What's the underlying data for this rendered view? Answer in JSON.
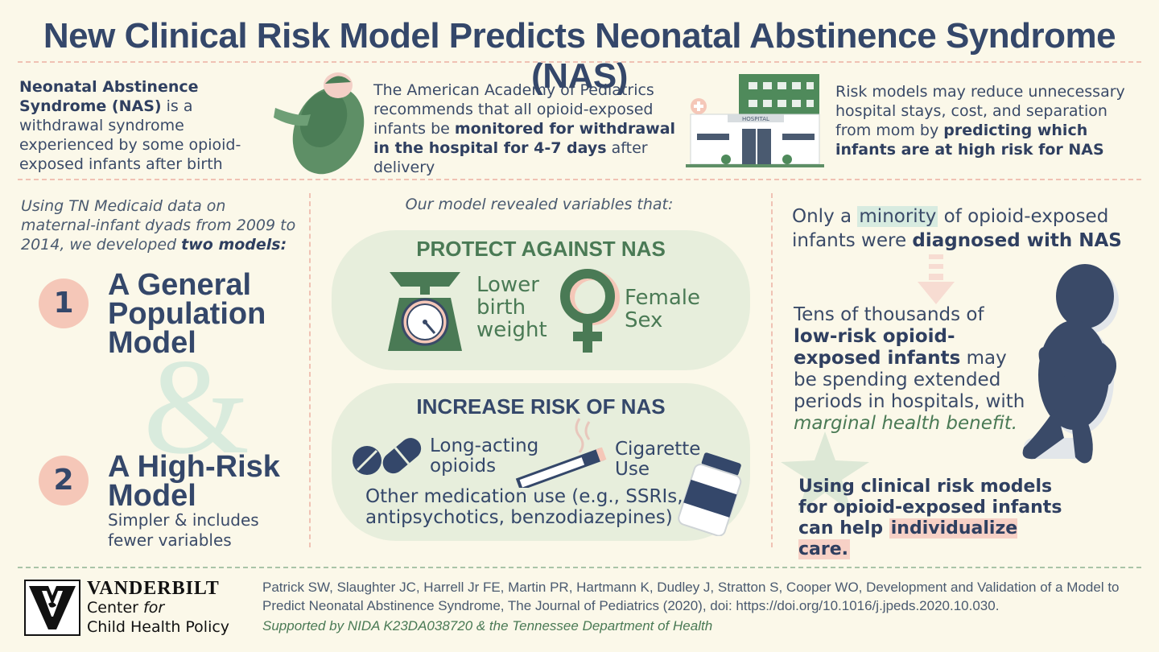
{
  "title": "New Clinical Risk Model Predicts Neonatal Abstinence Syndrome (NAS)",
  "intro": {
    "nas_bold": "Neonatal Abstinence Syndrome (NAS)",
    "nas_rest": " is a withdrawal syndrome experienced by some opioid-exposed infants after birth",
    "aap_a": "The American Academy of Pediatrics recommends that all opioid-exposed infants be ",
    "aap_bold": "monitored for withdrawal in the hospital for 4-7 days",
    "aap_b": " after delivery",
    "hospital_sign": "HOSPITAL",
    "risk_a": "Risk models may reduce unnecessary hospital stays, cost, and separation from mom by ",
    "risk_bold": "predicting which infants are at high risk for NAS"
  },
  "left": {
    "intro_a": "Using TN Medicaid data on maternal-infant dyads from 2009 to 2014, we developed ",
    "intro_bold": "two models:",
    "model1_num": "1",
    "model1_title": "A General Population Model",
    "amp": "&",
    "model2_num": "2",
    "model2_title": "A High-Risk Model",
    "model2_sub": "Simpler & includes fewer variables"
  },
  "middle": {
    "intro": "Our model revealed variables that:",
    "protect_title": "PROTECT AGAINST NAS",
    "protect_1": "Lower birth weight",
    "protect_2": "Female Sex",
    "increase_title": "INCREASE RISK OF NAS",
    "increase_1": "Long-acting opioids",
    "increase_2": "Cigarette Use",
    "increase_3": "Other medication use (e.g., SSRIs, antipsychotics, benzodiazepines)"
  },
  "right": {
    "p1_a": "Only a ",
    "p1_hl": "minority",
    "p1_b": " of opioid-exposed infants were ",
    "p1_bold": "diagnosed with NAS",
    "p2_a": "Tens of thousands of ",
    "p2_bold": "low-risk opioid-exposed infants",
    "p2_b": " may be spending extended periods in hospitals, with ",
    "p2_it": "marginal health benefit.",
    "p3_a": "Using clinical risk models for opioid-exposed infants can help ",
    "p3_hl": "individualize care."
  },
  "footer": {
    "logo_name": "VANDERBILT",
    "logo_line2a": "Center ",
    "logo_line2b": "for",
    "logo_line3": "Child Health Policy",
    "citation": "Patrick SW, Slaughter JC, Harrell Jr FE, Martin PR, Hartmann K, Dudley J, Stratton S, Cooper WO, Development and Validation of a Model to Predict Neonatal Abstinence Syndrome, The Journal of Pediatrics (2020), doi: https://doi.org/10.1016/j.jpeds.2020.10.030.",
    "support": "Supported by NIDA K23DA038720 & the Tennessee Department of Health"
  },
  "colors": {
    "navy": "#34476a",
    "green": "#4a7a55",
    "pink": "#f5c7b8",
    "pill": "#e7eedc",
    "background": "#fbf8e9"
  }
}
